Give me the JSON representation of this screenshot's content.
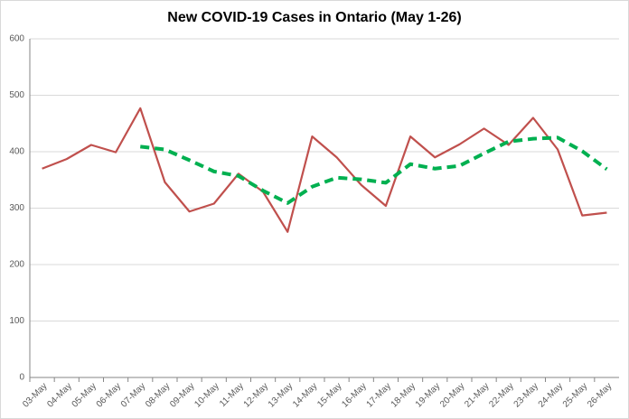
{
  "chart_data": {
    "type": "line",
    "title": "New COVID-19 Cases in Ontario (May 1-26)",
    "categories": [
      "03-May",
      "04-May",
      "05-May",
      "06-May",
      "07-May",
      "08-May",
      "09-May",
      "10-May",
      "11-May",
      "12-May",
      "13-May",
      "14-May",
      "15-May",
      "16-May",
      "17-May",
      "18-May",
      "19-May",
      "20-May",
      "21-May",
      "22-May",
      "23-May",
      "24-May",
      "25-May",
      "26-May"
    ],
    "series": [
      {
        "color": "#c0504d",
        "dashed": false,
        "values": [
          370,
          387,
          412,
          399,
          477,
          346,
          294,
          308,
          361,
          329,
          258,
          427,
          390,
          341,
          304,
          427,
          390,
          413,
          441,
          412,
          460,
          404,
          287,
          292
        ]
      },
      {
        "color": "#00b050",
        "dashed": true,
        "values": [
          null,
          null,
          null,
          null,
          409,
          404,
          385,
          365,
          357,
          331,
          309,
          338,
          354,
          351,
          345,
          378,
          370,
          375,
          397,
          418,
          423,
          425,
          401,
          369
        ]
      }
    ],
    "ylim": [
      0,
      600
    ],
    "yticks": [
      0,
      100,
      200,
      300,
      400,
      500,
      600
    ],
    "grid": true
  }
}
